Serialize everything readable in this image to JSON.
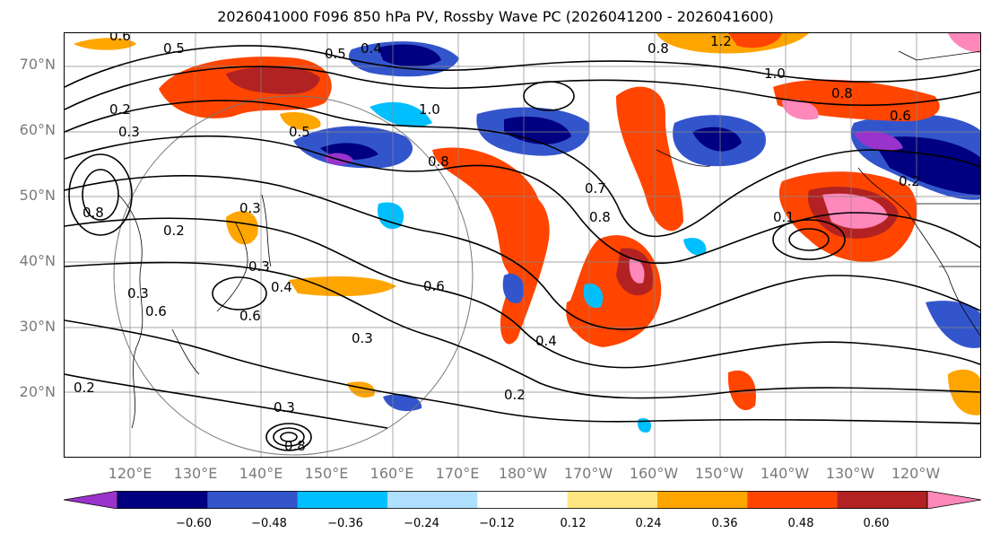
{
  "title": "2026041000 F096 850 hPa PV, Rossby Wave PC (2026041200 - 2026041600)",
  "lat_labels": [
    "70°N",
    "60°N",
    "50°N",
    "40°N",
    "30°N",
    "20°N"
  ],
  "lon_labels": [
    "120°E",
    "130°E",
    "140°E",
    "150°E",
    "160°E",
    "170°E",
    "180°W",
    "170°W",
    "160°W",
    "150°W",
    "140°W",
    "130°W",
    "120°W"
  ],
  "colorbar": {
    "ticks": [
      "−0.60",
      "−0.48",
      "−0.36",
      "−0.24",
      "−0.12",
      "0.12",
      "0.24",
      "0.36",
      "0.48",
      "0.60"
    ],
    "colors": [
      "#9933cc",
      "#000080",
      "#3355cc",
      "#00bfff",
      "#b0e0ff",
      "#ffffff",
      "#ffe680",
      "#ffa500",
      "#ff4500",
      "#b22222",
      "#ff88bb"
    ]
  },
  "contour_labels": [
    "0.6",
    "0.5",
    "0.5",
    "0.4",
    "0.8",
    "1.2",
    "1.0",
    "0.2",
    "0.3",
    "1.0",
    "0.5",
    "0.8",
    "0.8",
    "0.6",
    "0.8",
    "0.7",
    "0.8",
    "0.6",
    "0.4",
    "0.3",
    "0.2",
    "0.3",
    "0.2",
    "0.1",
    "0.2",
    "0.3",
    "0.3",
    "0.6",
    "0.4",
    "0.8",
    "0.2",
    "0.6",
    "0.3"
  ]
}
